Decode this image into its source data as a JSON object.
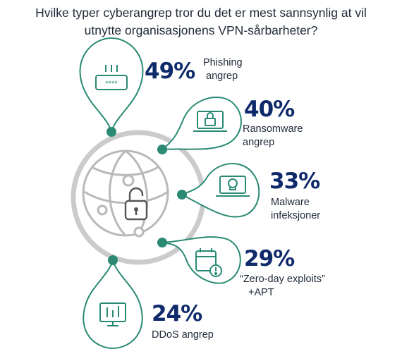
{
  "title": {
    "line1": "Hvilke typer cyberangrep tror du det er mest sannsynlig at vil",
    "line2": "utnytte organisasjonens VPN-sårbarheter?"
  },
  "colors": {
    "teal": "#2a8a74",
    "navy": "#0f2a6b",
    "ring": "#c9c9c9",
    "text": "#1f2937"
  },
  "chart_data": {
    "type": "bar",
    "title": "Hvilke typer cyberangrep tror du det er mest sannsynlig at vil utnytte organisasjonens VPN-sårbarheter?",
    "categories": [
      "Phishing angrep",
      "Ransomware angrep",
      "Malware infeksjoner",
      "“Zero-day exploits” +APT",
      "DDoS angrep"
    ],
    "values": [
      49,
      40,
      33,
      29,
      24
    ],
    "unit": "%"
  },
  "items": [
    {
      "pct": "49%",
      "line1": "Phishing",
      "line2": "angrep",
      "icon": "password-icon"
    },
    {
      "pct": "40%",
      "line1": "Ransomware",
      "line2": "angrep",
      "icon": "locked-laptop-icon"
    },
    {
      "pct": "33%",
      "line1": "Malware",
      "line2": "infeksjoner",
      "icon": "skull-laptop-icon"
    },
    {
      "pct": "29%",
      "line1": "“Zero-day exploits”",
      "line2": "+APT",
      "icon": "calendar-alert-icon"
    },
    {
      "pct": "24%",
      "line1": "DDoS angrep",
      "line2": "",
      "icon": "network-attack-icon"
    }
  ],
  "center_icon": "globe-unlock-icon"
}
